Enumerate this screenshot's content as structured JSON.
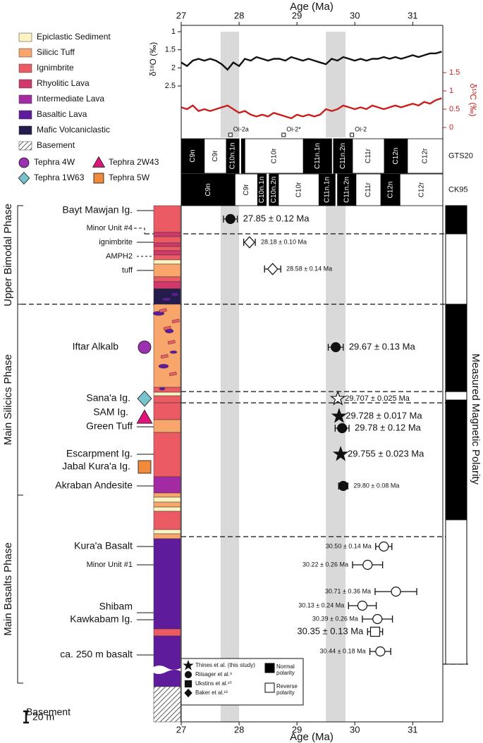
{
  "chart_data": [
    {
      "type": "line",
      "xlabel": "Age (Ma)",
      "xlim": [
        27,
        31.52
      ],
      "xticks": [
        27,
        28,
        29,
        30,
        31
      ],
      "ylabel": "δ¹⁸O (‰)",
      "ylim": [
        3.92,
        1
      ],
      "yticks": [
        1,
        1.5,
        2,
        2.5
      ],
      "y2label": "δ¹³C (‰)",
      "y2lim": [
        -0.27,
        2.62
      ],
      "y2ticks": [
        0,
        0.5,
        1,
        1.5
      ],
      "x": [
        27.0,
        27.1,
        27.2,
        27.3,
        27.4,
        27.5,
        27.6,
        27.7,
        27.8,
        27.9,
        28.0,
        28.1,
        28.2,
        28.3,
        28.4,
        28.5,
        28.6,
        28.7,
        28.8,
        28.9,
        29.0,
        29.1,
        29.2,
        29.3,
        29.4,
        29.5,
        29.6,
        29.7,
        29.8,
        29.9,
        30.0,
        30.1,
        30.2,
        30.3,
        30.4,
        30.5,
        30.6,
        30.7,
        30.8,
        30.9,
        31.0,
        31.1,
        31.2,
        31.3,
        31.4,
        31.5
      ],
      "series": [
        {
          "color": "#111111",
          "values": [
            1.85,
            1.95,
            1.8,
            1.75,
            1.8,
            1.75,
            1.8,
            1.9,
            2.05,
            1.85,
            1.95,
            1.75,
            1.8,
            1.7,
            1.75,
            1.8,
            1.75,
            1.75,
            1.8,
            1.7,
            1.75,
            1.8,
            1.75,
            1.8,
            1.85,
            1.9,
            1.75,
            1.8,
            1.7,
            1.75,
            1.8,
            1.75,
            1.8,
            1.75,
            1.75,
            1.7,
            1.75,
            1.7,
            1.75,
            1.7,
            1.65,
            1.7,
            1.65,
            1.6,
            1.6,
            1.55
          ]
        },
        {
          "color": "#c8201e",
          "axis": "y2",
          "values": [
            0.55,
            0.5,
            0.6,
            0.45,
            0.5,
            0.45,
            0.5,
            0.55,
            0.6,
            0.5,
            0.4,
            0.45,
            0.35,
            0.3,
            0.35,
            0.3,
            0.4,
            0.35,
            0.3,
            0.25,
            0.35,
            0.3,
            0.35,
            0.3,
            0.35,
            0.5,
            0.45,
            0.5,
            0.6,
            0.55,
            0.5,
            0.55,
            0.5,
            0.6,
            0.55,
            0.5,
            0.55,
            0.6,
            0.55,
            0.6,
            0.65,
            0.6,
            0.7,
            0.65,
            0.75,
            0.8
          ]
        }
      ],
      "bands": [
        [
          27.68,
          28.0
        ],
        [
          29.5,
          29.84
        ]
      ],
      "band_color": "#d9d9d9",
      "events": [
        {
          "name": "Oi-2a",
          "x": 27.85
        },
        {
          "name": "Oi-2*",
          "x": 28.77
        },
        {
          "name": "Oi-2",
          "x": 29.95
        }
      ],
      "chrons": [
        {
          "scale": "GTS20",
          "intervals": [
            {
              "name": "C9n",
              "start": 27.0,
              "end": 27.4,
              "normal": true
            },
            {
              "name": "C9r",
              "start": 27.4,
              "end": 27.78,
              "normal": false
            },
            {
              "name": "C10n.1n",
              "start": 27.78,
              "end": 28.0,
              "normal": true
            },
            {
              "name": null,
              "start": 28.04,
              "end": 28.1,
              "normal": true
            },
            {
              "name": "C10r",
              "start": 28.1,
              "end": 29.11,
              "normal": false
            },
            {
              "name": "C11n.1n",
              "start": 29.11,
              "end": 29.6,
              "normal": true
            },
            {
              "name": "C11n.2n",
              "start": 29.63,
              "end": 29.96,
              "normal": true
            },
            {
              "name": "C11r",
              "start": 29.96,
              "end": 30.51,
              "normal": false
            },
            {
              "name": "C12n",
              "start": 30.51,
              "end": 30.91,
              "normal": true
            },
            {
              "name": "C12r",
              "start": 30.91,
              "end": 31.52,
              "normal": false
            }
          ]
        },
        {
          "scale": "CK95",
          "intervals": [
            {
              "name": "C9n",
              "start": 27.0,
              "end": 27.93,
              "normal": true
            },
            {
              "name": "C9r",
              "start": 27.93,
              "end": 28.32,
              "normal": false
            },
            {
              "name": "C10n.1n",
              "start": 28.32,
              "end": 28.47,
              "normal": true
            },
            {
              "name": "C10n.2n",
              "start": 28.52,
              "end": 28.68,
              "normal": true
            },
            {
              "name": "C10r",
              "start": 28.68,
              "end": 29.38,
              "normal": false
            },
            {
              "name": "C11n.1n",
              "start": 29.38,
              "end": 29.66,
              "normal": true
            },
            {
              "name": "C11n.2n",
              "start": 29.7,
              "end": 30.02,
              "normal": true
            },
            {
              "name": "C11r",
              "start": 30.02,
              "end": 30.45,
              "normal": false
            },
            {
              "name": "C12n",
              "start": 30.45,
              "end": 30.78,
              "normal": true
            },
            {
              "name": "C12r",
              "start": 30.78,
              "end": 31.52,
              "normal": false
            }
          ]
        }
      ]
    },
    {
      "type": "dates",
      "xlabel": "Age (Ma)",
      "xlim": [
        27,
        31.52
      ],
      "xticks": [
        27,
        28,
        29,
        30,
        31
      ],
      "values": [
        27.85,
        28.18,
        28.58,
        29.67,
        29.707,
        29.728,
        29.78,
        29.755,
        29.8,
        30.5,
        30.22,
        30.71,
        30.13,
        30.39,
        30.35,
        30.44
      ],
      "errors": [
        0.12,
        0.1,
        0.14,
        0.13,
        0.025,
        0.017,
        0.12,
        0.023,
        0.08,
        0.14,
        0.26,
        0.36,
        0.24,
        0.26,
        0.13,
        0.18
      ],
      "value_labels": [
        "27.85 ± 0.12 Ma",
        "28.18 ± 0.10 Ma",
        "28.58 ± 0.14 Ma",
        "29.67 ± 0.13 Ma",
        "29.707 ± 0.025 Ma",
        "29.728 ± 0.017 Ma",
        "29.78 ± 0.12 Ma",
        "29.755 ± 0.023 Ma",
        "29.80 ± 0.08 Ma",
        "30.50 ± 0.14 Ma",
        "30.22 ± 0.26 Ma",
        "30.71 ± 0.36 Ma",
        "30.13 ± 0.24 Ma",
        "30.39 ± 0.26 Ma",
        "30.35 ± 0.13 Ma",
        "30.44 ± 0.18 Ma"
      ],
      "markers": [
        "circle",
        "diamond",
        "diamond",
        "circle",
        "star",
        "star",
        "circle",
        "star",
        "circle",
        "circle",
        "circle",
        "circle",
        "circle",
        "circle",
        "square",
        "circle"
      ],
      "filled": [
        true,
        false,
        false,
        true,
        false,
        true,
        true,
        true,
        true,
        false,
        false,
        false,
        false,
        false,
        false,
        false
      ]
    }
  ],
  "legend": {
    "lithologies": [
      {
        "name": "Epiclastic Sediment",
        "color": "#fdf3c0"
      },
      {
        "name": "Silicic Tuff",
        "color": "#f9a66c"
      },
      {
        "name": "Ignimbrite",
        "color": "#ec5a64"
      },
      {
        "name": "Rhyolitic Lava",
        "color": "#d2386c"
      },
      {
        "name": "Intermediate Lava",
        "color": "#a42aa4"
      },
      {
        "name": "Basaltic Lava",
        "color": "#5e1c9c"
      },
      {
        "name": "Mafic Volcaniclastic",
        "color": "#231c4c"
      },
      {
        "name": "Basement",
        "pattern": "hatch"
      }
    ],
    "tephra": [
      {
        "name": "Tephra 4W",
        "color": "#9b30b0",
        "marker": "circle"
      },
      {
        "name": "Tephra 2W43",
        "color": "#e0157a",
        "marker": "triangle"
      },
      {
        "name": "Tephra 1W63",
        "color": "#79c4cc",
        "marker": "diamond"
      },
      {
        "name": "Tephra 5W",
        "color": "#f08a3c",
        "marker": "square"
      }
    ]
  },
  "units": [
    "Bayt Mawjan Ig.",
    "Minor Unit #4",
    "ignimbrite",
    "AMPH2",
    "tuff",
    "Iftar Alkalb",
    "Sana'a Ig.",
    "SAM Ig.",
    "Green Tuff",
    "Escarpment Ig.",
    "Jabal Kura'a Ig.",
    "Akraban Andesite",
    "Kura'a Basalt",
    "Minor Unit #1",
    "Shibam",
    "Kawkabam Ig.",
    "ca. 250 m basalt",
    "Basement"
  ],
  "phases": [
    "Upper Bimodal Phase",
    "Main Silicics Phase",
    "Main Basalts Phase"
  ],
  "polarity_label": "Measured Magnetic Polarity",
  "source_legend": [
    {
      "name": "Thines et al. (this study)",
      "marker": "star"
    },
    {
      "name": "Riisager et al.⁸",
      "marker": "circle"
    },
    {
      "name": "Ukstins et al.¹⁰",
      "marker": "square"
    },
    {
      "name": "Baker et al.¹³",
      "marker": "diamond"
    }
  ],
  "polarity_legend": [
    "Normal polarity",
    "Reverse polarity"
  ],
  "scale_label": "20 m"
}
